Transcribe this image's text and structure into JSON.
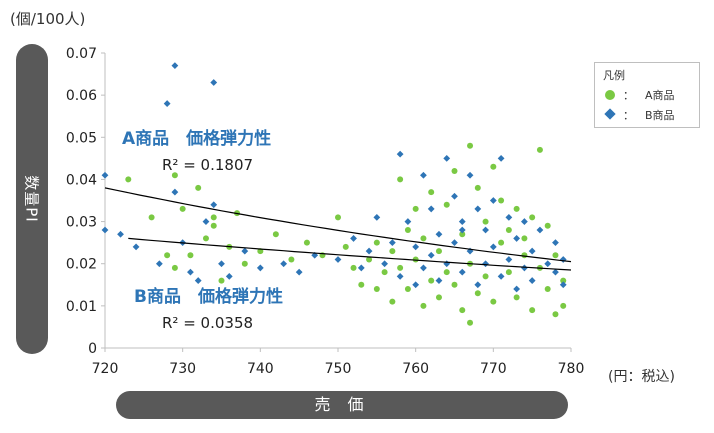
{
  "units": {
    "y": "(個/100人)",
    "x": "(円：税込)"
  },
  "ylabel": "数量PI",
  "xlabel": "売 価",
  "legend": {
    "title": "凡例",
    "items": [
      {
        "sep": "：",
        "name": "A商品",
        "marker": "circle",
        "color": "#7ac943"
      },
      {
        "sep": "：",
        "name": "B商品",
        "marker": "diamond",
        "color": "#2e75b6"
      }
    ]
  },
  "annotations": {
    "a_title": "A商品　価格弾力性",
    "a_r2": "R² = 0.1807",
    "b_title": "B商品　価格弾力性",
    "b_r2": "R² = 0.0358"
  },
  "chart_data": {
    "type": "scatter",
    "xlim": [
      720,
      780
    ],
    "ylim": [
      0,
      0.07
    ],
    "xticks": [
      "720",
      "730",
      "740",
      "750",
      "760",
      "770",
      "780"
    ],
    "yticks": [
      "0",
      "0.01",
      "0.02",
      "0.03",
      "0.04",
      "0.05",
      "0.06",
      "0.07"
    ],
    "grid": false,
    "legend_position": "top-right",
    "series": [
      {
        "name": "A商品",
        "marker": "circle",
        "color": "#7ac943",
        "points": [
          [
            723,
            0.04
          ],
          [
            726,
            0.031
          ],
          [
            728,
            0.022
          ],
          [
            729,
            0.041
          ],
          [
            729,
            0.019
          ],
          [
            730,
            0.033
          ],
          [
            731,
            0.022
          ],
          [
            732,
            0.038
          ],
          [
            733,
            0.026
          ],
          [
            734,
            0.031
          ],
          [
            734,
            0.029
          ],
          [
            735,
            0.016
          ],
          [
            736,
            0.024
          ],
          [
            737,
            0.032
          ],
          [
            738,
            0.02
          ],
          [
            740,
            0.023
          ],
          [
            742,
            0.027
          ],
          [
            744,
            0.021
          ],
          [
            746,
            0.025
          ],
          [
            748,
            0.022
          ],
          [
            750,
            0.031
          ],
          [
            751,
            0.024
          ],
          [
            752,
            0.019
          ],
          [
            753,
            0.015
          ],
          [
            754,
            0.021
          ],
          [
            755,
            0.014
          ],
          [
            755,
            0.025
          ],
          [
            756,
            0.018
          ],
          [
            757,
            0.023
          ],
          [
            757,
            0.011
          ],
          [
            758,
            0.04
          ],
          [
            758,
            0.019
          ],
          [
            759,
            0.028
          ],
          [
            759,
            0.014
          ],
          [
            760,
            0.033
          ],
          [
            760,
            0.021
          ],
          [
            761,
            0.026
          ],
          [
            761,
            0.01
          ],
          [
            762,
            0.016
          ],
          [
            762,
            0.037
          ],
          [
            763,
            0.023
          ],
          [
            763,
            0.012
          ],
          [
            764,
            0.034
          ],
          [
            764,
            0.018
          ],
          [
            765,
            0.042
          ],
          [
            765,
            0.015
          ],
          [
            766,
            0.027
          ],
          [
            766,
            0.009
          ],
          [
            767,
            0.048
          ],
          [
            767,
            0.02
          ],
          [
            768,
            0.038
          ],
          [
            768,
            0.013
          ],
          [
            769,
            0.03
          ],
          [
            769,
            0.017
          ],
          [
            770,
            0.043
          ],
          [
            770,
            0.011
          ],
          [
            771,
            0.025
          ],
          [
            771,
            0.035
          ],
          [
            772,
            0.018
          ],
          [
            772,
            0.028
          ],
          [
            773,
            0.012
          ],
          [
            773,
            0.033
          ],
          [
            774,
            0.022
          ],
          [
            774,
            0.026
          ],
          [
            775,
            0.009
          ],
          [
            775,
            0.031
          ],
          [
            776,
            0.047
          ],
          [
            776,
            0.019
          ],
          [
            777,
            0.014
          ],
          [
            777,
            0.029
          ],
          [
            778,
            0.008
          ],
          [
            778,
            0.022
          ],
          [
            779,
            0.01
          ],
          [
            779,
            0.016
          ],
          [
            767,
            0.006
          ]
        ]
      },
      {
        "name": "B商品",
        "marker": "diamond",
        "color": "#2e75b6",
        "points": [
          [
            720,
            0.041
          ],
          [
            720,
            0.028
          ],
          [
            722,
            0.027
          ],
          [
            724,
            0.024
          ],
          [
            727,
            0.02
          ],
          [
            728,
            0.058
          ],
          [
            729,
            0.067
          ],
          [
            729,
            0.037
          ],
          [
            730,
            0.025
          ],
          [
            731,
            0.018
          ],
          [
            732,
            0.016
          ],
          [
            733,
            0.03
          ],
          [
            734,
            0.063
          ],
          [
            734,
            0.034
          ],
          [
            735,
            0.02
          ],
          [
            736,
            0.017
          ],
          [
            738,
            0.023
          ],
          [
            740,
            0.019
          ],
          [
            743,
            0.02
          ],
          [
            745,
            0.018
          ],
          [
            747,
            0.022
          ],
          [
            750,
            0.021
          ],
          [
            752,
            0.026
          ],
          [
            753,
            0.019
          ],
          [
            754,
            0.023
          ],
          [
            755,
            0.031
          ],
          [
            756,
            0.02
          ],
          [
            757,
            0.025
          ],
          [
            758,
            0.046
          ],
          [
            758,
            0.017
          ],
          [
            759,
            0.03
          ],
          [
            760,
            0.024
          ],
          [
            760,
            0.015
          ],
          [
            761,
            0.041
          ],
          [
            761,
            0.019
          ],
          [
            762,
            0.033
          ],
          [
            762,
            0.022
          ],
          [
            763,
            0.027
          ],
          [
            763,
            0.016
          ],
          [
            764,
            0.045
          ],
          [
            764,
            0.02
          ],
          [
            765,
            0.036
          ],
          [
            765,
            0.025
          ],
          [
            766,
            0.03
          ],
          [
            766,
            0.018
          ],
          [
            767,
            0.041
          ],
          [
            767,
            0.023
          ],
          [
            768,
            0.033
          ],
          [
            768,
            0.015
          ],
          [
            769,
            0.028
          ],
          [
            769,
            0.02
          ],
          [
            770,
            0.035
          ],
          [
            770,
            0.024
          ],
          [
            771,
            0.045
          ],
          [
            771,
            0.017
          ],
          [
            772,
            0.031
          ],
          [
            772,
            0.021
          ],
          [
            773,
            0.026
          ],
          [
            773,
            0.014
          ],
          [
            774,
            0.03
          ],
          [
            774,
            0.019
          ],
          [
            775,
            0.023
          ],
          [
            775,
            0.016
          ],
          [
            776,
            0.028
          ],
          [
            777,
            0.02
          ],
          [
            778,
            0.025
          ],
          [
            778,
            0.018
          ],
          [
            779,
            0.021
          ],
          [
            779,
            0.015
          ],
          [
            766,
            0.028
          ]
        ]
      }
    ],
    "trendlines": [
      {
        "series": "A商品",
        "type": "exponential",
        "color": "#000000",
        "x": [
          720,
          780
        ],
        "y": [
          0.038,
          0.0205
        ]
      },
      {
        "series": "B商品",
        "type": "exponential",
        "color": "#000000",
        "x": [
          723,
          780
        ],
        "y": [
          0.026,
          0.0185
        ]
      }
    ]
  }
}
